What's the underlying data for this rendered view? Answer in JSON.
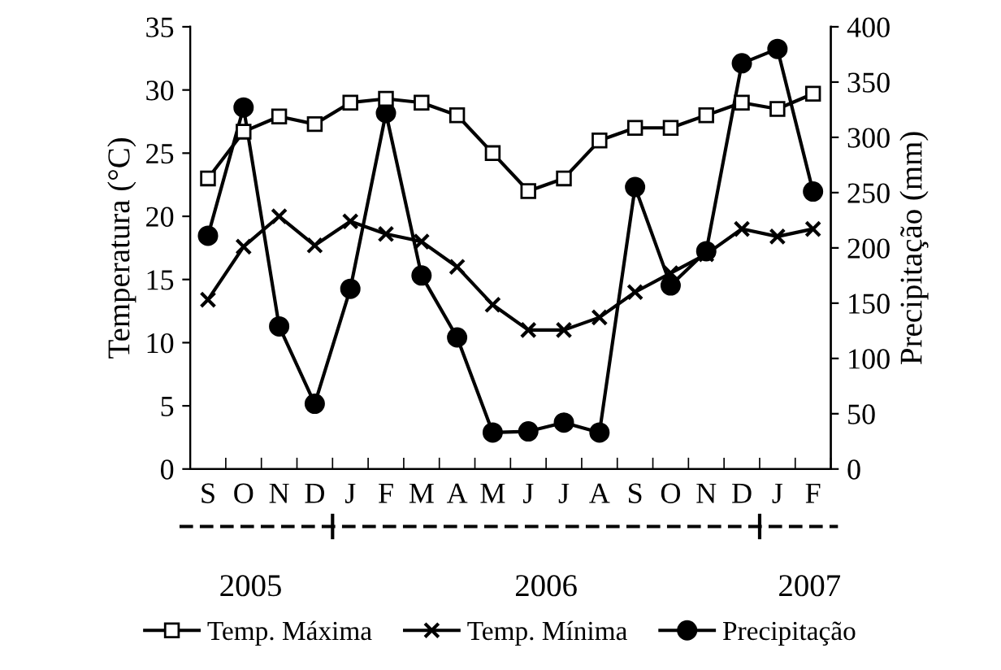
{
  "chart_data": {
    "type": "line",
    "ylabel": "Temperatura (°C)",
    "y2label": "Precipitação (mm)",
    "categories": [
      "S",
      "O",
      "N",
      "D",
      "J",
      "F",
      "M",
      "A",
      "M",
      "J",
      "J",
      "A",
      "S",
      "O",
      "N",
      "D",
      "J",
      "F"
    ],
    "series": [
      {
        "name": "Temp. Máxima",
        "color": "#000000",
        "marker": "square",
        "values": [
          23,
          26.7,
          27.9,
          27.3,
          29,
          29.3,
          29,
          28,
          25,
          22,
          23,
          26,
          27,
          27,
          28,
          29,
          28.5,
          29.7
        ]
      },
      {
        "name": "Temp. Mínima",
        "color": "#000000",
        "marker": "cross",
        "values": [
          13.4,
          17.6,
          20,
          17.7,
          19.6,
          18.6,
          18,
          16,
          13,
          11,
          11,
          12,
          14,
          15.5,
          17,
          19,
          18.4,
          19
        ]
      },
      {
        "name": "Precipitação",
        "color": "#000000",
        "marker": "circle",
        "axis": "y2",
        "values": [
          211,
          327,
          129,
          59,
          163,
          322,
          175,
          119,
          33,
          34,
          42,
          33,
          255,
          166,
          197,
          367,
          380,
          251
        ]
      }
    ],
    "ylim": [
      0,
      35
    ],
    "yticks": [
      0,
      5,
      10,
      15,
      20,
      25,
      30,
      35
    ],
    "y2lim": [
      0,
      400
    ],
    "y2ticks": [
      0,
      50,
      100,
      150,
      200,
      250,
      300,
      350,
      400
    ],
    "grid": false,
    "legend": "bottom",
    "line_style": "solid",
    "annotations": [
      "2005",
      "2006",
      "2007"
    ]
  }
}
